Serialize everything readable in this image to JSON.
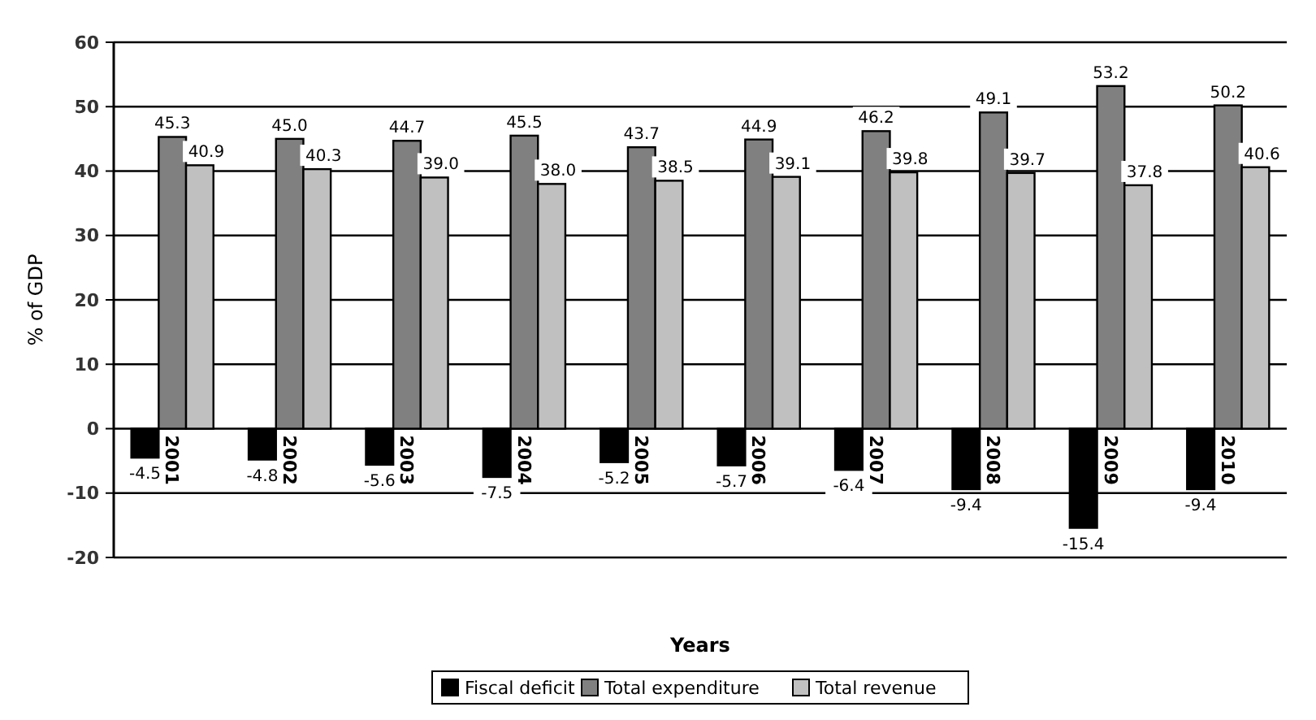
{
  "chart_data": {
    "type": "bar",
    "xlabel": "Years",
    "ylabel": "% of GDP",
    "categories": [
      "2001",
      "2002",
      "2003",
      "2004",
      "2005",
      "2006",
      "2007",
      "2008",
      "2009",
      "2010"
    ],
    "series": [
      {
        "name": "Fiscal deficit",
        "color": "#000000",
        "values": [
          -4.5,
          -4.8,
          -5.6,
          -7.5,
          -5.2,
          -5.7,
          -6.4,
          -9.4,
          -15.4,
          -9.4
        ],
        "value_labels": [
          "-4.5",
          "-4.8",
          "-5.6",
          "-7.5",
          "-5.2",
          "-5.7",
          "-6.4",
          "-9.4",
          "-15.4",
          "-9.4"
        ]
      },
      {
        "name": "Total expenditure",
        "color": "#808080",
        "values": [
          45.3,
          45.0,
          44.7,
          45.5,
          43.7,
          44.9,
          46.2,
          49.1,
          53.2,
          50.2
        ],
        "value_labels": [
          "45.3",
          "45.0",
          "44.7",
          "45.5",
          "43.7",
          "44.9",
          "46.2",
          "49.1",
          "53.2",
          "50.2"
        ]
      },
      {
        "name": "Total revenue",
        "color": "#c0c0c0",
        "values": [
          40.9,
          40.3,
          39.0,
          38.0,
          38.5,
          39.1,
          39.8,
          39.7,
          37.8,
          40.6
        ],
        "value_labels": [
          "40.9",
          "40.3",
          "39.0",
          "38.0",
          "38.5",
          "39.1",
          "39.8",
          "39.7",
          "37.8",
          "40.6"
        ]
      }
    ],
    "ylim": [
      -20,
      60
    ],
    "yticks": [
      -20,
      -10,
      0,
      10,
      20,
      30,
      40,
      50,
      60
    ],
    "grid": "y",
    "legend": "bottom"
  }
}
